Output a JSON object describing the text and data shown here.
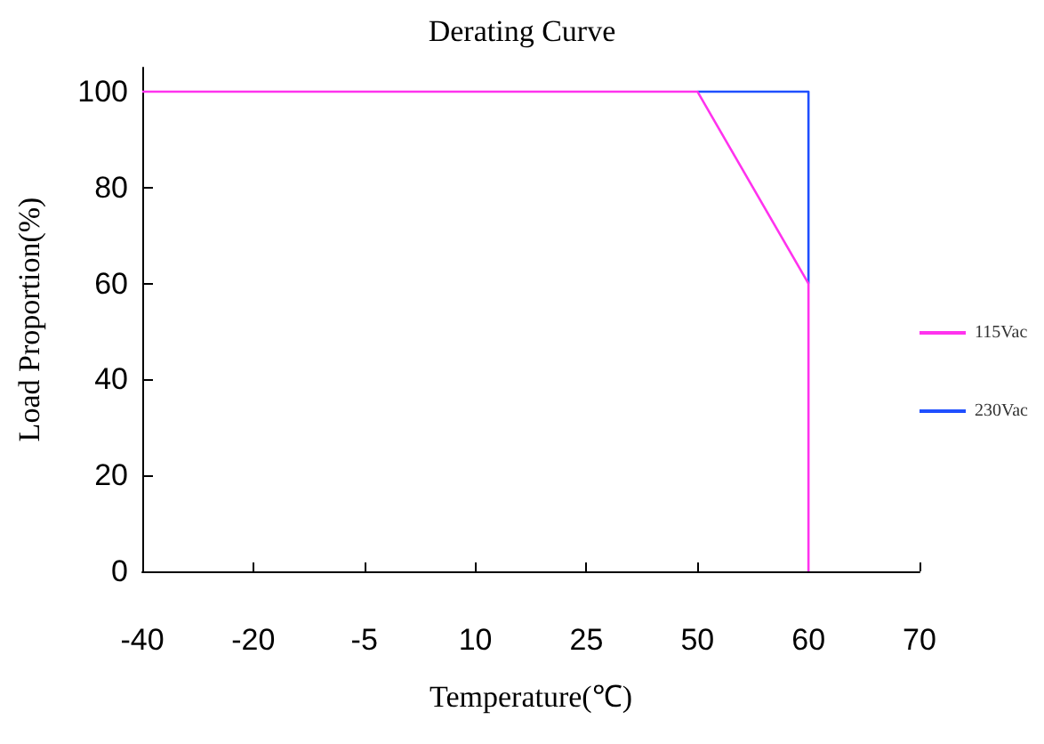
{
  "chart_data": {
    "type": "line",
    "title": "Derating Curve",
    "xlabel": "Temperature(℃)",
    "ylabel": "Load Proportion(%)",
    "categories": [
      "-40",
      "-20",
      "-5",
      "10",
      "25",
      "50",
      "60",
      "70"
    ],
    "series": [
      {
        "name": "230Vac",
        "color": "#1f4fff",
        "x": [
          "50",
          "60",
          "60"
        ],
        "values": [
          100,
          100,
          60
        ]
      },
      {
        "name": "115Vac",
        "color": "#ff33ee",
        "x": [
          "-40",
          "50",
          "60",
          "60"
        ],
        "values": [
          100,
          100,
          60,
          0
        ]
      }
    ],
    "ylim": [
      0,
      105
    ],
    "yticks": [
      0,
      20,
      40,
      60,
      80,
      100
    ],
    "grid": false,
    "legend": "right",
    "marker": "none",
    "line_style": "solid"
  }
}
